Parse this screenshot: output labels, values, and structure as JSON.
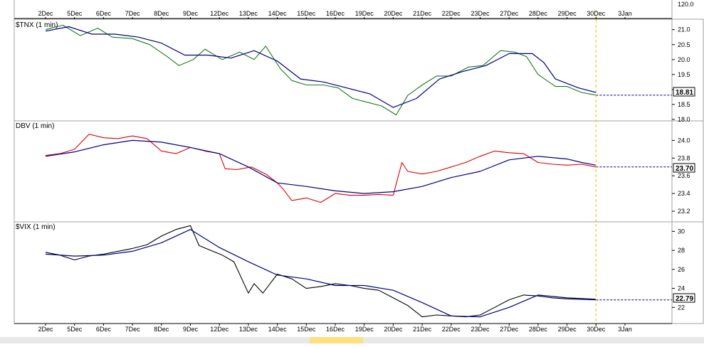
{
  "chart_data": [
    {
      "type": "line",
      "title": "$TNX (1 min)",
      "x_categories": [
        "2Dec",
        "5Dec",
        "6Dec",
        "7Dec",
        "8Dec",
        "9Dec",
        "12Dec",
        "13Dec",
        "14Dec",
        "15Dec",
        "16Dec",
        "19Dec",
        "20Dec",
        "21Dec",
        "22Dec",
        "23Dec",
        "27Dec",
        "28Dec",
        "29Dec",
        "30Dec",
        "3Jan"
      ],
      "y_ticks": [
        "21.0",
        "20.5",
        "20.0",
        "19.5",
        "19.0",
        "18.5",
        "18.0"
      ],
      "ylim": [
        17.95,
        21.35
      ],
      "last_value": "18.81",
      "series": [
        {
          "color": "#1a7a1a",
          "x": [
            0,
            0.6,
            1.2,
            1.8,
            2.3,
            3,
            3.6,
            4.2,
            4.6,
            5.1,
            5.5,
            6.1,
            6.7,
            7.2,
            7.6,
            8.1,
            8.5,
            9,
            9.6,
            10.1,
            10.6,
            11.2,
            11.6,
            12.1,
            12.5,
            13,
            13.5,
            14,
            14.6,
            15.1,
            15.7,
            16.2,
            16.6,
            17,
            17.6,
            18,
            18.5,
            19
          ],
          "values": [
            21.0,
            21.15,
            20.8,
            21.05,
            20.75,
            20.7,
            20.5,
            20.1,
            19.8,
            20.0,
            20.35,
            20.0,
            20.25,
            20.0,
            20.45,
            19.7,
            19.3,
            19.15,
            19.15,
            19.05,
            18.7,
            18.55,
            18.45,
            18.15,
            18.8,
            19.15,
            19.45,
            19.45,
            19.75,
            19.8,
            20.3,
            20.25,
            20.1,
            19.5,
            19.1,
            19.1,
            18.9,
            18.81
          ]
        },
        {
          "color": "#000080",
          "x": [
            0,
            0.8,
            1.6,
            2.4,
            3.2,
            4,
            4.8,
            5.6,
            6.4,
            7.2,
            8,
            8.8,
            9.6,
            10.4,
            11.2,
            12,
            12.8,
            13.6,
            14.4,
            15.2,
            16,
            16.8,
            17.2,
            17.6,
            18.4,
            19
          ],
          "values": [
            20.95,
            21.1,
            20.85,
            20.85,
            20.75,
            20.55,
            20.15,
            20.15,
            20.05,
            20.3,
            19.95,
            19.35,
            19.25,
            19.05,
            18.85,
            18.4,
            18.7,
            19.35,
            19.6,
            19.8,
            20.2,
            20.2,
            19.9,
            19.35,
            19.05,
            18.9
          ]
        }
      ]
    },
    {
      "type": "line",
      "title": "DBV (1 min)",
      "y_ticks": [
        "24.0",
        "23.8",
        "23.6",
        "23.4",
        "23.2"
      ],
      "ylim": [
        23.08,
        24.22
      ],
      "last_value": "23.70",
      "series": [
        {
          "color": "#dd0000",
          "x": [
            0,
            0.5,
            1,
            1.5,
            2,
            2.5,
            3,
            3.5,
            4,
            4.5,
            5,
            5.5,
            6,
            6.2,
            6.6,
            7.1,
            7.6,
            8,
            8.2,
            8.5,
            9,
            9.5,
            10,
            10.5,
            11,
            11.5,
            12,
            12.3,
            12.5,
            13,
            13.5,
            14,
            14.5,
            15,
            15.5,
            16,
            16.5,
            17,
            17.5,
            18,
            18.5,
            19
          ],
          "values": [
            23.83,
            23.85,
            23.9,
            24.07,
            24.03,
            24.02,
            24.05,
            24.02,
            23.88,
            23.85,
            23.92,
            23.88,
            23.85,
            23.68,
            23.67,
            23.7,
            23.62,
            23.52,
            23.45,
            23.32,
            23.35,
            23.3,
            23.4,
            23.38,
            23.38,
            23.39,
            23.38,
            23.75,
            23.65,
            23.62,
            23.65,
            23.7,
            23.75,
            23.82,
            23.88,
            23.86,
            23.85,
            23.75,
            23.73,
            23.72,
            23.73,
            23.7
          ]
        },
        {
          "color": "#000080",
          "x": [
            0,
            1,
            2,
            3,
            4,
            5,
            6,
            7,
            8,
            9,
            10,
            11,
            12,
            13,
            14,
            15,
            16,
            17,
            18,
            18.5,
            19
          ],
          "values": [
            23.82,
            23.87,
            23.95,
            24.0,
            23.98,
            23.92,
            23.85,
            23.7,
            23.52,
            23.48,
            23.43,
            23.4,
            23.42,
            23.48,
            23.58,
            23.65,
            23.78,
            23.82,
            23.79,
            23.75,
            23.72
          ]
        }
      ]
    },
    {
      "type": "line",
      "title": "$VIX (1 min)",
      "y_ticks": [
        "30",
        "28",
        "26",
        "24",
        "22"
      ],
      "ylim": [
        20.3,
        31.0
      ],
      "last_value": "22.79",
      "series": [
        {
          "color": "#000000",
          "x": [
            0,
            0.5,
            1,
            1.5,
            2,
            2.5,
            3,
            3.5,
            4,
            4.5,
            5,
            5.3,
            5.7,
            6.1,
            6.5,
            7,
            7.2,
            7.5,
            8,
            8.5,
            9,
            9.5,
            10,
            10.5,
            11,
            11.5,
            12,
            12.5,
            13,
            13.5,
            14,
            14.5,
            15,
            15.5,
            16,
            16.5,
            17,
            17.5,
            18,
            18.5,
            19
          ],
          "values": [
            27.8,
            27.5,
            27.0,
            27.4,
            27.6,
            27.9,
            28.2,
            28.6,
            29.5,
            30.2,
            30.6,
            28.5,
            28.0,
            27.5,
            26.8,
            23.5,
            24.5,
            23.5,
            25.5,
            25.0,
            24.0,
            24.2,
            24.5,
            24.3,
            24.0,
            23.8,
            23.0,
            22.2,
            21.0,
            21.2,
            21.1,
            21.0,
            21.2,
            22.0,
            22.8,
            23.3,
            23.2,
            23.0,
            22.9,
            22.85,
            22.79
          ]
        },
        {
          "color": "#000080",
          "x": [
            0,
            1,
            2,
            3,
            4,
            5,
            6,
            7,
            8,
            9,
            10,
            11,
            12,
            13,
            14,
            15,
            16,
            17,
            18,
            19
          ],
          "values": [
            27.6,
            27.4,
            27.5,
            27.9,
            28.8,
            30.2,
            28.3,
            26.8,
            25.4,
            25.0,
            24.3,
            24.3,
            23.8,
            22.5,
            21.1,
            21.0,
            22.0,
            23.3,
            23.0,
            22.85
          ]
        }
      ]
    }
  ],
  "colors": {
    "axis_text": "#000000",
    "marker_line": "#f0c000",
    "panel_border": "#a0a0a0",
    "grid": "#d0d0d0"
  },
  "top_partial_ytick": "120.0"
}
